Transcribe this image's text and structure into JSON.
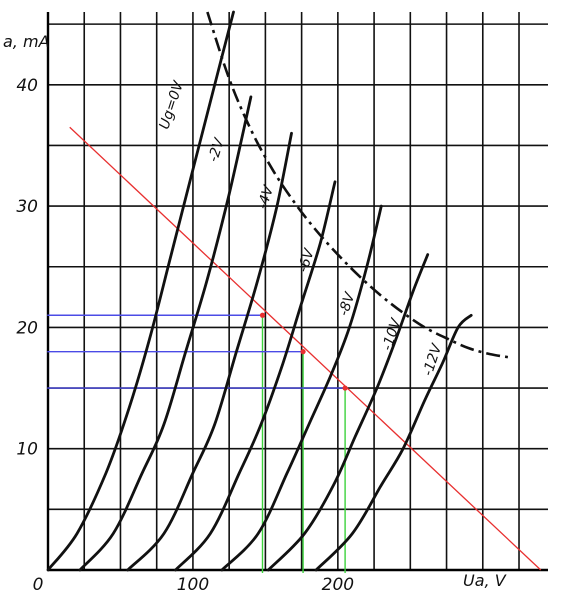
{
  "chart_data": {
    "type": "line",
    "title": "",
    "xlabel": "U_a, V",
    "ylabel": "I_a, mA",
    "x_axis_label": "Ua, V",
    "y_axis_label": "a, mA",
    "xlim": [
      0,
      345
    ],
    "ylim": [
      0,
      46
    ],
    "x_ticks": [
      {
        "value": 0,
        "label": "0"
      },
      {
        "value": 100,
        "label": "100"
      },
      {
        "value": 200,
        "label": "200"
      }
    ],
    "y_ticks": [
      {
        "value": 10,
        "label": "10"
      },
      {
        "value": 20,
        "label": "20"
      },
      {
        "value": 30,
        "label": "30"
      },
      {
        "value": 40,
        "label": "40"
      }
    ],
    "grid": true,
    "grid_step_x": 25,
    "grid_step_y": 5,
    "series": [
      {
        "name": "Ug=0V",
        "label_text": "Ug=0V",
        "x": [
          0,
          20,
          40,
          55,
          70,
          85,
          100,
          115,
          128
        ],
        "y": [
          0,
          3,
          8,
          13,
          19,
          26,
          33,
          40,
          46
        ]
      },
      {
        "name": "-2V",
        "label_text": "-2V",
        "x": [
          22,
          45,
          65,
          80,
          95,
          110,
          125,
          140
        ],
        "y": [
          0,
          3,
          8,
          12,
          18,
          24,
          31,
          39
        ]
      },
      {
        "name": "-4V",
        "label_text": "-4V",
        "x": [
          55,
          80,
          100,
          115,
          130,
          145,
          158,
          168
        ],
        "y": [
          0,
          3,
          8,
          12,
          18,
          24,
          30,
          36
        ]
      },
      {
        "name": "-6V",
        "label_text": "-6V",
        "x": [
          88,
          112,
          132,
          147,
          162,
          175,
          188,
          198
        ],
        "y": [
          0,
          3,
          8,
          12,
          17,
          22,
          27,
          32
        ]
      },
      {
        "name": "-8V",
        "label_text": "-8V",
        "x": [
          120,
          145,
          165,
          180,
          195,
          208,
          220,
          230
        ],
        "y": [
          0,
          3,
          8,
          12,
          16,
          20,
          25,
          30
        ]
      },
      {
        "name": "-10V",
        "label_text": "-10V",
        "x": [
          152,
          177,
          197,
          212,
          227,
          240,
          252,
          262
        ],
        "y": [
          0,
          3,
          7,
          11,
          15,
          19,
          23,
          26
        ]
      },
      {
        "name": "-12V",
        "label_text": "-12V",
        "x": [
          185,
          210,
          230,
          245,
          260,
          272,
          283,
          292
        ],
        "y": [
          0,
          3,
          7,
          10,
          14,
          17,
          20,
          21
        ]
      }
    ],
    "curve_labels": [
      {
        "series": 0,
        "x": 88,
        "y": 38.2
      },
      {
        "series": 1,
        "x": 119,
        "y": 34.5
      },
      {
        "series": 2,
        "x": 153,
        "y": 30.6
      },
      {
        "series": 3,
        "x": 181,
        "y": 25.4
      },
      {
        "series": 4,
        "x": 209,
        "y": 21.8
      },
      {
        "series": 5,
        "x": 240,
        "y": 19.3
      },
      {
        "series": 6,
        "x": 268,
        "y": 17.2
      }
    ],
    "dissipation_curve": {
      "x": [
        110,
        125,
        140,
        155,
        170,
        185,
        200,
        215,
        230,
        245,
        260,
        275,
        290,
        305,
        320
      ],
      "y": [
        46,
        40.5,
        36.3,
        33,
        30.3,
        28,
        26,
        24.2,
        22.6,
        21.2,
        20,
        19.1,
        18.3,
        17.8,
        17.5
      ]
    },
    "load_line": {
      "x": [
        15,
        340
      ],
      "y": [
        36.5,
        0
      ]
    },
    "operating_points": [
      {
        "x": 148,
        "y": 21
      },
      {
        "x": 176,
        "y": 18
      },
      {
        "x": 205,
        "y": 15
      }
    ],
    "colors": {
      "grid": "#111111",
      "curves": "#111111",
      "load_line": "#e83030",
      "horizontal_guides": "#4b4be6",
      "vertical_guides": "#3cd23c"
    }
  }
}
